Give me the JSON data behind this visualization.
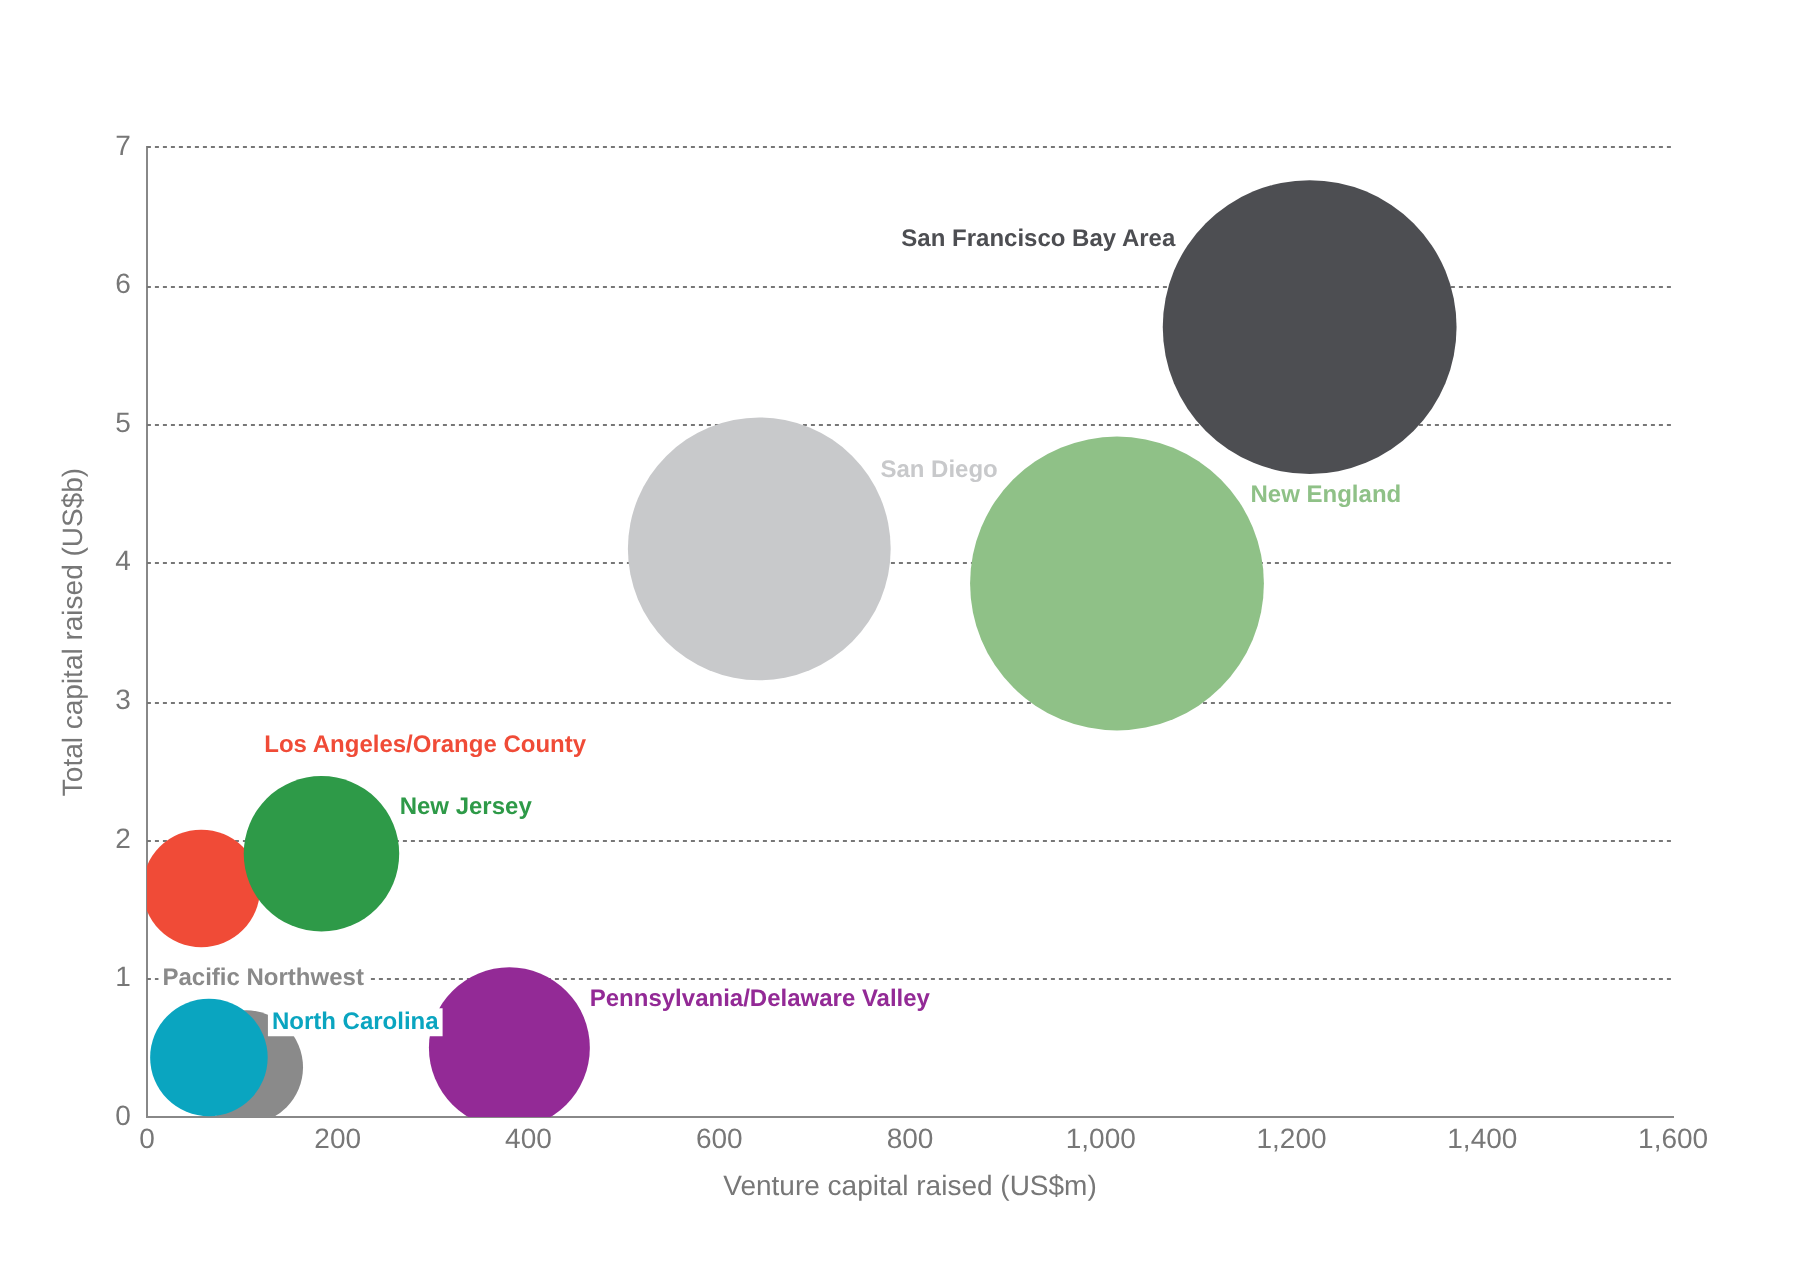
{
  "chart_data": {
    "type": "bubble",
    "xlabel": "Venture capital raised (US$m)",
    "ylabel": "Total capital raised (US$b)",
    "xlim": [
      0,
      1600
    ],
    "xticks": [
      0,
      {
        "value": 200,
        "label": "200"
      },
      {
        "value": 400,
        "label": "400"
      },
      {
        "value": 600,
        "label": "600"
      },
      {
        "value": 800,
        "label": "800"
      },
      {
        "value": 1000,
        "label": "1,000"
      },
      {
        "value": 1200,
        "label": "1,200"
      },
      {
        "value": 1400,
        "label": "1,400"
      },
      {
        "value": 1600,
        "label": "1,600"
      }
    ],
    "ylim": [
      0,
      7
    ],
    "yticks": [
      0,
      1,
      2,
      3,
      4,
      5,
      6,
      7
    ],
    "grid": "y",
    "legend": false,
    "series": [
      {
        "name": "San Francisco Bay Area",
        "color": "#4d4e52",
        "x": [
          1219
        ],
        "values": [
          5.7
        ],
        "sizes": [
          1
        ]
      },
      {
        "name": "San Diego",
        "color": "#c8c9cb",
        "x": [
          642
        ],
        "values": [
          4.1
        ],
        "sizes": [
          0.8
        ]
      },
      {
        "name": "New England",
        "color": "#8fc187",
        "x": [
          1017
        ],
        "values": [
          3.85
        ],
        "sizes": [
          1
        ]
      },
      {
        "name": "Los Angeles/Orange County",
        "color": "#f04b37",
        "x": [
          57
        ],
        "values": [
          1.65
        ],
        "sizes": [
          0.16
        ]
      },
      {
        "name": "New Jersey",
        "color": "#2e9a48",
        "x": [
          183
        ],
        "values": [
          1.9
        ],
        "sizes": [
          0.28
        ]
      },
      {
        "name": "Pacific Northwest",
        "color": "#8a8a8a",
        "x": [
          104
        ],
        "values": [
          0.36
        ],
        "sizes": [
          0.15
        ]
      },
      {
        "name": "North Carolina",
        "color": "#0aa5c0",
        "x": [
          65
        ],
        "values": [
          0.43
        ],
        "sizes": [
          0.16
        ]
      },
      {
        "name": "Pennsylvania/Delaware Valley",
        "color": "#932a96",
        "x": [
          380
        ],
        "values": [
          0.5
        ],
        "sizes": [
          0.3
        ]
      }
    ]
  }
}
